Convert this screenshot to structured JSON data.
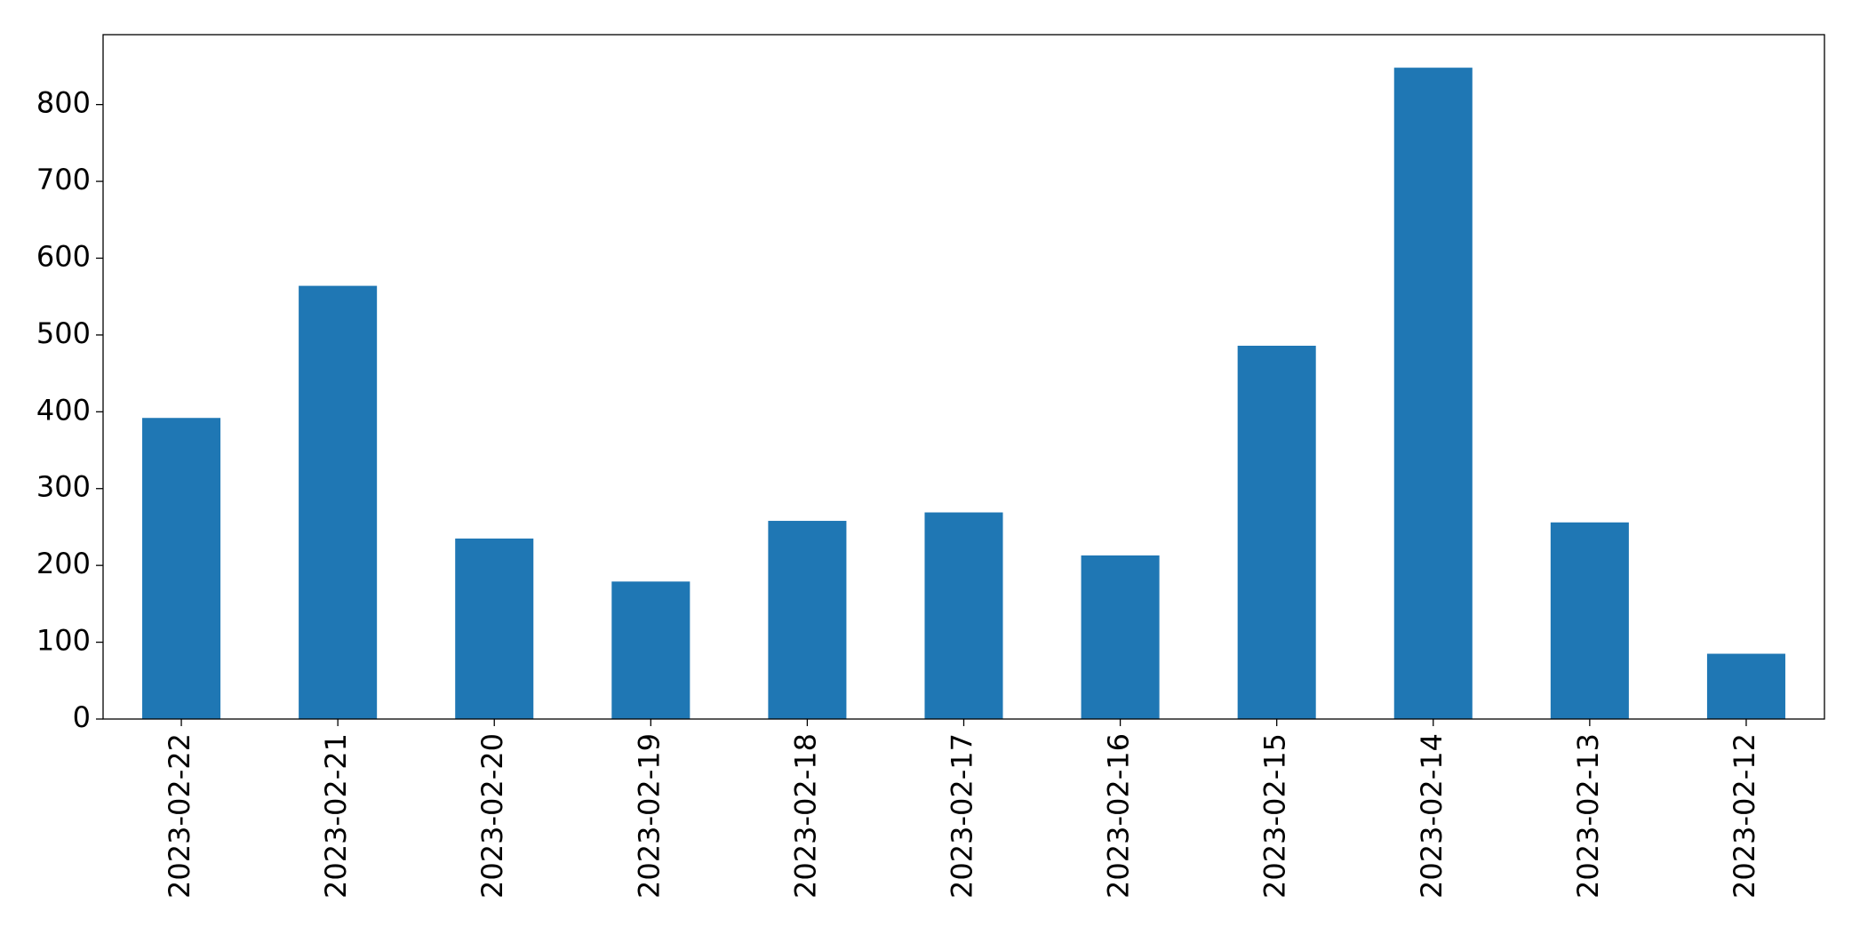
{
  "chart_data": {
    "type": "bar",
    "categories": [
      "2023-02-22",
      "2023-02-21",
      "2023-02-20",
      "2023-02-19",
      "2023-02-18",
      "2023-02-17",
      "2023-02-16",
      "2023-02-15",
      "2023-02-14",
      "2023-02-13",
      "2023-02-12"
    ],
    "values": [
      392,
      564,
      235,
      179,
      258,
      269,
      213,
      486,
      848,
      256,
      85
    ],
    "color": "#1f77b4",
    "ylim": [
      0,
      891
    ],
    "yticks": [
      0,
      100,
      200,
      300,
      400,
      500,
      600,
      700,
      800
    ],
    "grid": false
  }
}
